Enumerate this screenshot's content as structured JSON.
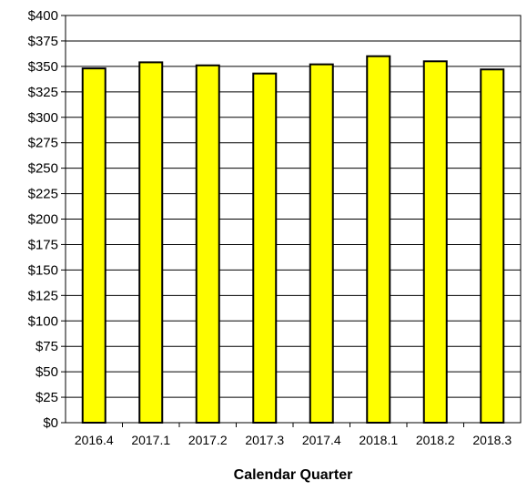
{
  "chart_data": {
    "type": "bar",
    "title": "",
    "xlabel": "Calendar Quarter",
    "ylabel": "",
    "categories": [
      "2016.4",
      "2017.1",
      "2017.2",
      "2017.3",
      "2017.4",
      "2018.1",
      "2018.2",
      "2018.3"
    ],
    "values": [
      348,
      354,
      351,
      343,
      352,
      360,
      355,
      347
    ],
    "ylim": [
      0,
      400
    ],
    "ytick_step": 25,
    "ytick_labels": [
      "$0",
      "$25",
      "$50",
      "$75",
      "$100",
      "$125",
      "$150",
      "$175",
      "$200",
      "$225",
      "$250",
      "$275",
      "$300",
      "$325",
      "$350",
      "$375",
      "$400"
    ],
    "grid": true,
    "legend": "none",
    "bar_color": "#FFFF00",
    "bar_edge_color": "#000000"
  }
}
